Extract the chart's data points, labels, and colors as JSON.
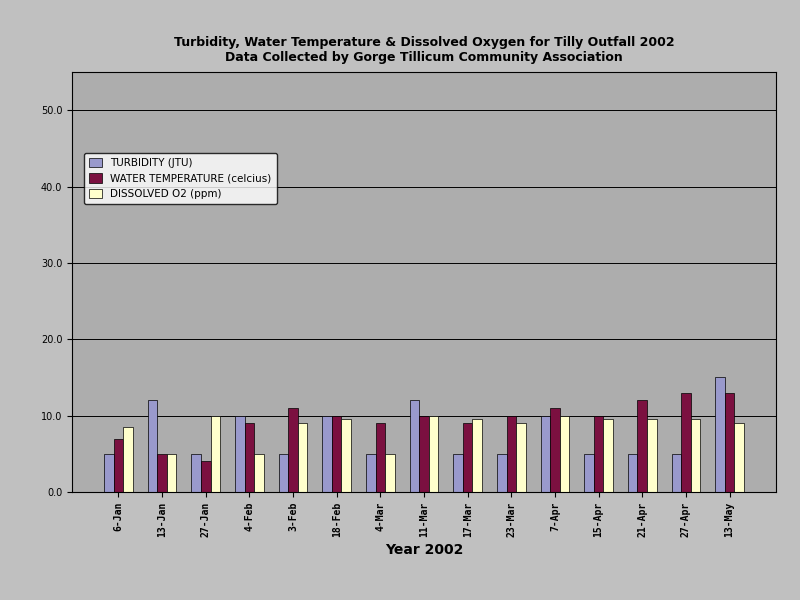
{
  "title_line1": "Turbidity, Water Temperature & Dissolved Oxygen for Tilly Outfall 2002",
  "title_line2": "Data Collected by Gorge Tillicum Community Association",
  "xlabel": "Year 2002",
  "categories": [
    "6-Jan",
    "13-Jan",
    "27-Jan",
    "4-Feb",
    "3-Feb",
    "18-Feb",
    "4-Mar",
    "11-Mar",
    "17-Mar",
    "23-Mar",
    "7-Apr",
    "15-Apr",
    "21-Apr",
    "27-Apr",
    "13-May"
  ],
  "turbidity": [
    5,
    12,
    5,
    10,
    5,
    10,
    5,
    12,
    5,
    5,
    10,
    5,
    5,
    5,
    15
  ],
  "water_temp": [
    7,
    5,
    4,
    9,
    11,
    10,
    9,
    10,
    9,
    10,
    11,
    10,
    12,
    13,
    13
  ],
  "dissolved_o2": [
    8.5,
    5,
    10,
    5,
    9,
    9.5,
    5,
    10,
    9.5,
    9,
    10,
    9.5,
    9.5,
    9.5,
    9
  ],
  "color_turbidity": "#9999CC",
  "color_water_temp": "#7B1040",
  "color_dissolved_o2": "#FFFFCC",
  "ylim": [
    0,
    55
  ],
  "yticks": [
    0.0,
    10.0,
    20.0,
    30.0,
    40.0,
    50.0
  ],
  "background_color": "#C0C0C0",
  "plot_bg_color": "#ADADAD",
  "legend_labels": [
    "TURBIDITY (JTU)",
    "WATER TEMPERATURE (celcius)",
    "DISSOLVED O2 (ppm)"
  ],
  "bar_width": 0.22,
  "title_fontsize": 9,
  "tick_fontsize": 7,
  "xlabel_fontsize": 10
}
